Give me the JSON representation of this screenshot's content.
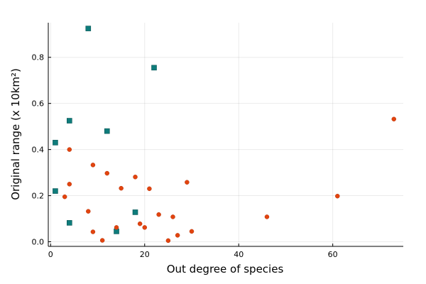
{
  "chart_data": {
    "type": "scatter",
    "xlabel": "Out degree of species",
    "ylabel": "Original range (x 10km²)",
    "xlim": [
      -0.5,
      75
    ],
    "ylim": [
      -0.02,
      0.95
    ],
    "x_ticks": [
      0,
      20,
      40,
      60
    ],
    "y_ticks": [
      0.0,
      0.2,
      0.4,
      0.6,
      0.8
    ],
    "x_tick_labels": [
      "0",
      "20",
      "40",
      "60"
    ],
    "y_tick_labels": [
      "0.0",
      "0.2",
      "0.4",
      "0.6",
      "0.8"
    ],
    "grid": true,
    "legend": "none",
    "series": [
      {
        "marker": "square",
        "color": "#0e7c7b",
        "points": [
          {
            "x": 8,
            "y": 0.925
          },
          {
            "x": 22,
            "y": 0.755
          },
          {
            "x": 4,
            "y": 0.525
          },
          {
            "x": 12,
            "y": 0.48
          },
          {
            "x": 1,
            "y": 0.43
          },
          {
            "x": 1,
            "y": 0.22
          },
          {
            "x": 18,
            "y": 0.128
          },
          {
            "x": 4,
            "y": 0.082
          },
          {
            "x": 14,
            "y": 0.045
          }
        ]
      },
      {
        "marker": "circle",
        "color": "#e2440f",
        "points": [
          {
            "x": 73,
            "y": 0.532
          },
          {
            "x": 4,
            "y": 0.4
          },
          {
            "x": 9,
            "y": 0.333
          },
          {
            "x": 12,
            "y": 0.297
          },
          {
            "x": 18,
            "y": 0.281
          },
          {
            "x": 29,
            "y": 0.258
          },
          {
            "x": 4,
            "y": 0.25
          },
          {
            "x": 15,
            "y": 0.232
          },
          {
            "x": 21,
            "y": 0.23
          },
          {
            "x": 61,
            "y": 0.198
          },
          {
            "x": 3,
            "y": 0.195
          },
          {
            "x": 8,
            "y": 0.132
          },
          {
            "x": 23,
            "y": 0.118
          },
          {
            "x": 26,
            "y": 0.108
          },
          {
            "x": 46,
            "y": 0.108
          },
          {
            "x": 19,
            "y": 0.078
          },
          {
            "x": 14,
            "y": 0.062
          },
          {
            "x": 20,
            "y": 0.062
          },
          {
            "x": 30,
            "y": 0.045
          },
          {
            "x": 9,
            "y": 0.043
          },
          {
            "x": 27,
            "y": 0.028
          },
          {
            "x": 11,
            "y": 0.006
          },
          {
            "x": 25,
            "y": 0.005
          }
        ]
      }
    ]
  }
}
